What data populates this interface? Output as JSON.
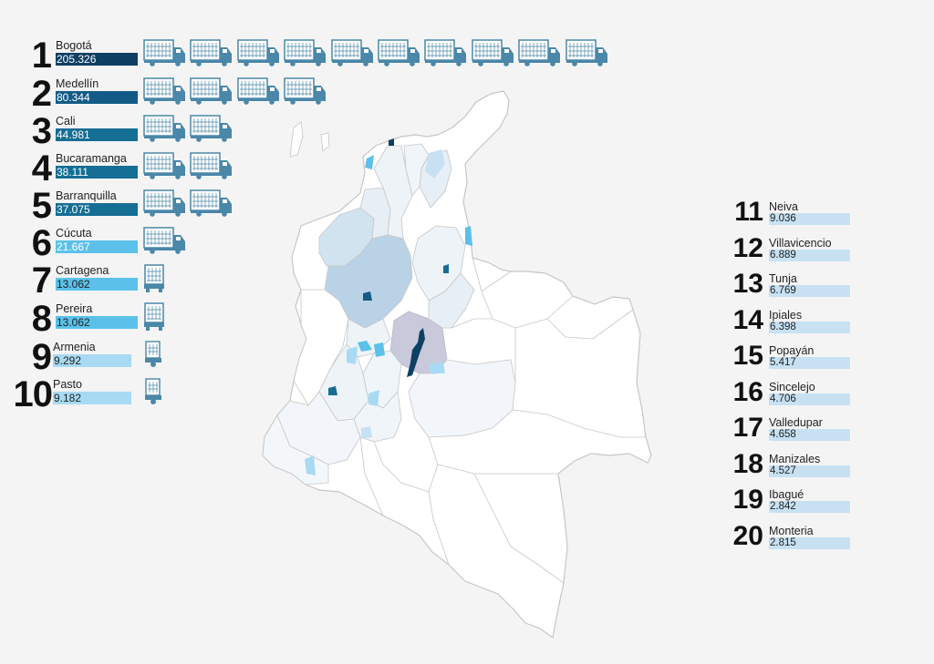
{
  "left_ranking": [
    {
      "rank": "1",
      "city": "Bogotá",
      "value": "205.326",
      "trucks": 10,
      "truck_type": "full",
      "bar_color": "#0f3f63",
      "text_color": "#ffffff"
    },
    {
      "rank": "2",
      "city": "Medellín",
      "value": "80.344",
      "trucks": 4,
      "truck_type": "full",
      "bar_color": "#135b86",
      "text_color": "#ffffff"
    },
    {
      "rank": "3",
      "city": "Cali",
      "value": "44.981",
      "trucks": 2,
      "truck_type": "full",
      "bar_color": "#156e94",
      "text_color": "#ffffff"
    },
    {
      "rank": "4",
      "city": "Bucaramanga",
      "value": "38.111",
      "trucks": 2,
      "truck_type": "full",
      "bar_color": "#156e94",
      "text_color": "#ffffff"
    },
    {
      "rank": "5",
      "city": "Barranquilla",
      "value": "37.075",
      "trucks": 2,
      "truck_type": "full",
      "bar_color": "#156e94",
      "text_color": "#ffffff"
    },
    {
      "rank": "6",
      "city": "Cúcuta",
      "value": "21.667",
      "trucks": 1,
      "truck_type": "full",
      "bar_color": "#5bc1ea",
      "text_color": "#ffffff"
    },
    {
      "rank": "7",
      "city": "Cartagena",
      "value": "13.062",
      "trucks": 1,
      "truck_type": "front",
      "bar_color": "#5bc1ea",
      "text_color": "#222222"
    },
    {
      "rank": "8",
      "city": "Pereira",
      "value": "13.062",
      "trucks": 1,
      "truck_type": "front",
      "bar_color": "#5bc1ea",
      "text_color": "#222222"
    },
    {
      "rank": "9",
      "city": "Armenia",
      "value": "9.292",
      "trucks": 1,
      "truck_type": "small",
      "bar_color": "#a8daf3",
      "text_color": "#222222"
    },
    {
      "rank": "10",
      "city": "Pasto",
      "value": "9.182",
      "trucks": 1,
      "truck_type": "small",
      "bar_color": "#a8daf3",
      "text_color": "#222222"
    }
  ],
  "right_ranking": [
    {
      "rank": "11",
      "city": "Neiva",
      "value": "9.036"
    },
    {
      "rank": "12",
      "city": "Villavicencio",
      "value": "6.889"
    },
    {
      "rank": "13",
      "city": "Tunja",
      "value": "6.769"
    },
    {
      "rank": "14",
      "city": "Ipiales",
      "value": "6.398"
    },
    {
      "rank": "15",
      "city": "Popayán",
      "value": "5.417"
    },
    {
      "rank": "16",
      "city": "Sincelejo",
      "value": "4.706"
    },
    {
      "rank": "17",
      "city": "Valledupar",
      "value": "4.658"
    },
    {
      "rank": "18",
      "city": "Manizales",
      "value": "4.527"
    },
    {
      "rank": "19",
      "city": "Ibagué",
      "value": "2.842"
    },
    {
      "rank": "20",
      "city": "Monteria",
      "value": "2.815"
    }
  ],
  "colors": {
    "truck": "#4a87a8",
    "map_fill": "#ffffff",
    "map_stroke": "#c6c6c6",
    "highlight_dark": "#0f3f63",
    "highlight_light": "#5bc1ea",
    "region_light": "#d2e3f0",
    "region_mid": "#b9d2e6",
    "region_purple": "#c8c9da"
  }
}
